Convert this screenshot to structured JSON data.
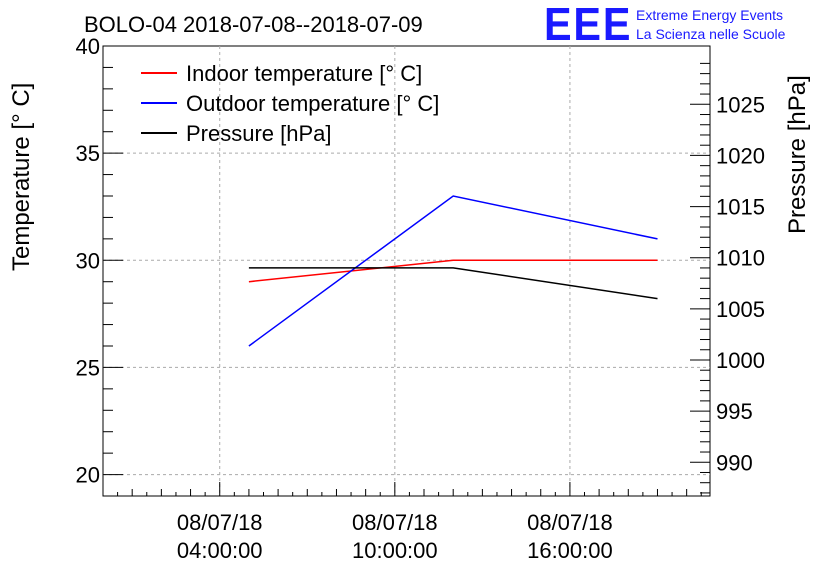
{
  "header": {
    "title": "BOLO-04 2018-07-08--2018-07-09"
  },
  "logo": {
    "mark": "EEE",
    "line1": "Extreme Energy Events",
    "line2": "La Scienza nelle Scuole",
    "color": "#1a1aff"
  },
  "chart_data": {
    "type": "line",
    "title": "BOLO-04 2018-07-08--2018-07-09",
    "ylabel": "Temperature [° C]",
    "y2label": "Pressure [hPa]",
    "xlabel": "",
    "x_ticks": [
      {
        "date": "08/07/18",
        "time": "04:00:00"
      },
      {
        "date": "08/07/18",
        "time": "10:00:00"
      },
      {
        "date": "08/07/18",
        "time": "16:00:00"
      }
    ],
    "x_tick_hours": [
      4,
      10,
      16
    ],
    "xlim_hours": [
      0.0,
      20.8
    ],
    "ylim": [
      19,
      40
    ],
    "y_ticks": [
      20,
      25,
      30,
      35,
      40
    ],
    "y2lim": [
      986.7,
      1030.7
    ],
    "y2_ticks": [
      990,
      995,
      1000,
      1005,
      1010,
      1015,
      1020,
      1025
    ],
    "grid": true,
    "legend_position": "top-left",
    "series": [
      {
        "name": "Indoor temperature [° C]",
        "axis": "left",
        "color": "#ff0000",
        "x_hours": [
          5,
          12,
          19
        ],
        "values": [
          29,
          30,
          30
        ]
      },
      {
        "name": "Outdoor temperature [° C]",
        "axis": "left",
        "color": "#0000ff",
        "x_hours": [
          5,
          12,
          19
        ],
        "values": [
          26,
          33,
          31
        ]
      },
      {
        "name": "Pressure [hPa]",
        "axis": "right",
        "color": "#000000",
        "x_hours": [
          5,
          12,
          19
        ],
        "values": [
          1009,
          1009,
          1006
        ]
      }
    ]
  }
}
